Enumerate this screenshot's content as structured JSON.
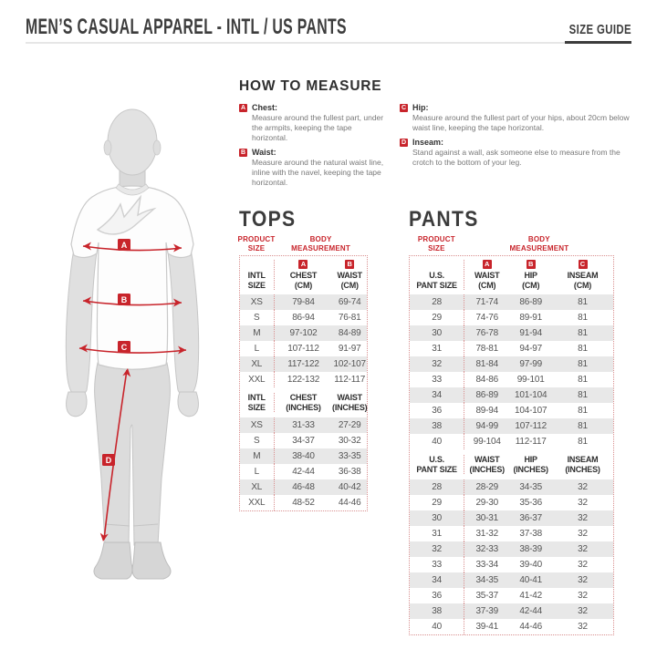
{
  "header": {
    "title": "MEN’S CASUAL APPAREL - INTL / US PANTS",
    "size_guide_label": "SIZE GUIDE"
  },
  "how_to_measure": {
    "heading": "HOW TO MEASURE",
    "items": [
      {
        "letter": "A",
        "name": "Chest:",
        "description": "Measure around the fullest part, under the armpits, keeping the tape horizontal."
      },
      {
        "letter": "B",
        "name": "Waist:",
        "description": "Measure around the natural waist line, inline with the navel, keeping the tape horizontal."
      },
      {
        "letter": "C",
        "name": "Hip:",
        "description": "Measure around the fullest part of your hips, about 20cm below waist line, keeping the tape horizontal."
      },
      {
        "letter": "D",
        "name": "Inseam:",
        "description": "Stand against a wall, ask someone else to measure from the crotch to the bottom of your leg."
      }
    ]
  },
  "figure": {
    "markers": [
      {
        "letter": "A"
      },
      {
        "letter": "B"
      },
      {
        "letter": "C"
      },
      {
        "letter": "D"
      }
    ]
  },
  "tables": {
    "tops": {
      "title": "TOPS",
      "product_size_label": "PRODUCT\nSIZE",
      "body_measurement_label": "BODY\nMEASUREMENT",
      "sections": [
        {
          "badged": true,
          "columns": [
            {
              "badge": "",
              "label": "INTL\nSIZE"
            },
            {
              "badge": "A",
              "label": "CHEST\n(CM)"
            },
            {
              "badge": "B",
              "label": "WAIST\n(CM)"
            }
          ],
          "rows": [
            [
              "XS",
              "79-84",
              "69-74"
            ],
            [
              "S",
              "86-94",
              "76-81"
            ],
            [
              "M",
              "97-102",
              "84-89"
            ],
            [
              "L",
              "107-112",
              "91-97"
            ],
            [
              "XL",
              "117-122",
              "102-107"
            ],
            [
              "XXL",
              "122-132",
              "112-117"
            ]
          ]
        },
        {
          "badged": false,
          "columns": [
            {
              "badge": "",
              "label": "INTL\nSIZE"
            },
            {
              "badge": "",
              "label": "CHEST\n(INCHES)"
            },
            {
              "badge": "",
              "label": "WAIST\n(INCHES)"
            }
          ],
          "rows": [
            [
              "XS",
              "31-33",
              "27-29"
            ],
            [
              "S",
              "34-37",
              "30-32"
            ],
            [
              "M",
              "38-40",
              "33-35"
            ],
            [
              "L",
              "42-44",
              "36-38"
            ],
            [
              "XL",
              "46-48",
              "40-42"
            ],
            [
              "XXL",
              "48-52",
              "44-46"
            ]
          ]
        }
      ]
    },
    "pants": {
      "title": "PANTS",
      "product_size_label": "PRODUCT\nSIZE",
      "body_measurement_label": "BODY\nMEASUREMENT",
      "sections": [
        {
          "badged": true,
          "columns": [
            {
              "badge": "",
              "label": "U.S.\nPANT SIZE"
            },
            {
              "badge": "A",
              "label": "WAIST\n(CM)"
            },
            {
              "badge": "B",
              "label": "HIP\n(CM)"
            },
            {
              "badge": "C",
              "label": "INSEAM\n(CM)"
            }
          ],
          "rows": [
            [
              "28",
              "71-74",
              "86-89",
              "81"
            ],
            [
              "29",
              "74-76",
              "89-91",
              "81"
            ],
            [
              "30",
              "76-78",
              "91-94",
              "81"
            ],
            [
              "31",
              "78-81",
              "94-97",
              "81"
            ],
            [
              "32",
              "81-84",
              "97-99",
              "81"
            ],
            [
              "33",
              "84-86",
              "99-101",
              "81"
            ],
            [
              "34",
              "86-89",
              "101-104",
              "81"
            ],
            [
              "36",
              "89-94",
              "104-107",
              "81"
            ],
            [
              "38",
              "94-99",
              "107-112",
              "81"
            ],
            [
              "40",
              "99-104",
              "112-117",
              "81"
            ]
          ]
        },
        {
          "badged": false,
          "columns": [
            {
              "badge": "",
              "label": "U.S.\nPANT SIZE"
            },
            {
              "badge": "",
              "label": "WAIST\n(INCHES)"
            },
            {
              "badge": "",
              "label": "HIP\n(INCHES)"
            },
            {
              "badge": "",
              "label": "INSEAM\n(INCHES)"
            }
          ],
          "rows": [
            [
              "28",
              "28-29",
              "34-35",
              "32"
            ],
            [
              "29",
              "29-30",
              "35-36",
              "32"
            ],
            [
              "30",
              "30-31",
              "36-37",
              "32"
            ],
            [
              "31",
              "31-32",
              "37-38",
              "32"
            ],
            [
              "32",
              "32-33",
              "38-39",
              "32"
            ],
            [
              "33",
              "33-34",
              "39-40",
              "32"
            ],
            [
              "34",
              "34-35",
              "40-41",
              "32"
            ],
            [
              "36",
              "35-37",
              "41-42",
              "32"
            ],
            [
              "38",
              "37-39",
              "42-44",
              "32"
            ],
            [
              "40",
              "39-41",
              "44-46",
              "32"
            ]
          ]
        }
      ]
    }
  },
  "colors": {
    "accent_red": "#c8242b",
    "row_stripe": "#e8e8e8",
    "heading_gray": "#3d3d3d",
    "dotted_border": "#d98f8f"
  }
}
